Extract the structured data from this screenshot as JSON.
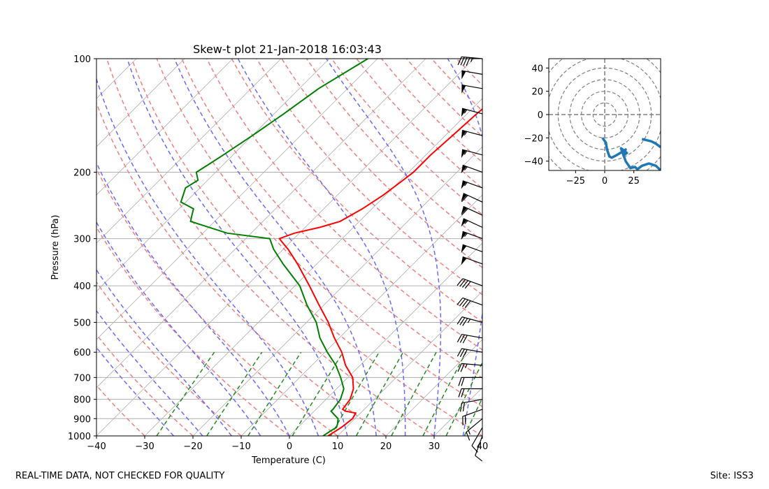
{
  "footer": {
    "quality_note": "REAL-TIME DATA, NOT CHECKED FOR QUALITY",
    "site": "Site: ISS3"
  },
  "colors": {
    "temperature": "#ff0000",
    "dewpoint": "#008000",
    "dry_adiabat": "#f08080",
    "moist_adiabat": "#6a6aff",
    "mixing_ratio": "#228b22",
    "isotherm": "#b0b0b0",
    "hodograph": "#1f77b4"
  },
  "chart_data": [
    {
      "type": "skew-t",
      "title": "Skew-t plot 21-Jan-2018 16:03:43",
      "xlabel": "Temperature (C)",
      "ylabel": "Pressure (hPa)",
      "xlim": [
        -40,
        40
      ],
      "ylim": [
        1000,
        100
      ],
      "x_ticks": [
        "−40",
        "−30",
        "−20",
        "−10",
        "0",
        "10",
        "20",
        "30",
        "40"
      ],
      "y_ticks": [
        "100",
        "200",
        "300",
        "400",
        "500",
        "600",
        "700",
        "800",
        "900",
        "1000"
      ],
      "temperature": [
        [
          1000,
          8
        ],
        [
          950,
          9
        ],
        [
          900,
          9.5
        ],
        [
          870,
          9
        ],
        [
          860,
          6.5
        ],
        [
          850,
          5.5
        ],
        [
          800,
          5
        ],
        [
          750,
          3.5
        ],
        [
          700,
          1
        ],
        [
          650,
          -3
        ],
        [
          600,
          -6.5
        ],
        [
          550,
          -11
        ],
        [
          500,
          -15.5
        ],
        [
          450,
          -21
        ],
        [
          400,
          -27
        ],
        [
          350,
          -34
        ],
        [
          320,
          -39
        ],
        [
          305,
          -42
        ],
        [
          300,
          -43
        ],
        [
          290,
          -41
        ],
        [
          280,
          -37
        ],
        [
          270,
          -34
        ],
        [
          250,
          -32
        ],
        [
          230,
          -30.5
        ],
        [
          210,
          -29.5
        ],
        [
          200,
          -29
        ],
        [
          180,
          -29
        ],
        [
          160,
          -28.5
        ],
        [
          140,
          -28
        ],
        [
          120,
          -27
        ],
        [
          110,
          -26.5
        ],
        [
          100,
          -26
        ]
      ],
      "dewpoint": [
        [
          1000,
          7
        ],
        [
          970,
          7.5
        ],
        [
          950,
          8
        ],
        [
          930,
          7.5
        ],
        [
          900,
          6.5
        ],
        [
          880,
          5
        ],
        [
          860,
          3.5
        ],
        [
          850,
          3.5
        ],
        [
          800,
          3
        ],
        [
          750,
          1.5
        ],
        [
          700,
          -1.5
        ],
        [
          650,
          -5
        ],
        [
          600,
          -9.5
        ],
        [
          550,
          -14
        ],
        [
          500,
          -18
        ],
        [
          450,
          -23.5
        ],
        [
          400,
          -29
        ],
        [
          350,
          -37
        ],
        [
          320,
          -42
        ],
        [
          300,
          -45
        ],
        [
          290,
          -55
        ],
        [
          270,
          -65
        ],
        [
          260,
          -66
        ],
        [
          250,
          -67
        ],
        [
          240,
          -71
        ],
        [
          220,
          -73
        ],
        [
          210,
          -72
        ],
        [
          200,
          -74
        ],
        [
          190,
          -73
        ],
        [
          180,
          -72
        ],
        [
          160,
          -70
        ],
        [
          140,
          -68
        ],
        [
          120,
          -66
        ],
        [
          100,
          -62
        ]
      ],
      "wind_barbs": [
        [
          1000,
          10,
          200
        ],
        [
          950,
          12,
          210
        ],
        [
          900,
          15,
          230
        ],
        [
          850,
          18,
          250
        ],
        [
          800,
          20,
          260
        ],
        [
          750,
          20,
          270
        ],
        [
          700,
          22,
          270
        ],
        [
          650,
          25,
          275
        ],
        [
          600,
          28,
          280
        ],
        [
          550,
          32,
          280
        ],
        [
          500,
          35,
          285
        ],
        [
          450,
          38,
          290
        ],
        [
          400,
          42,
          290
        ],
        [
          350,
          48,
          290
        ],
        [
          325,
          52,
          290
        ],
        [
          300,
          55,
          290
        ],
        [
          280,
          55,
          295
        ],
        [
          260,
          60,
          295
        ],
        [
          240,
          60,
          295
        ],
        [
          220,
          55,
          290
        ],
        [
          200,
          55,
          290
        ],
        [
          180,
          55,
          285
        ],
        [
          160,
          55,
          285
        ],
        [
          140,
          55,
          285
        ],
        [
          120,
          50,
          280
        ],
        [
          110,
          50,
          280
        ],
        [
          100,
          45,
          275
        ]
      ],
      "mixing_ratio_lines_gkg": [
        0.4,
        1,
        2,
        4,
        7,
        10,
        16,
        24,
        32,
        40
      ],
      "mixing_ratio_top_hPa": 600
    },
    {
      "type": "hodograph",
      "xlim": [
        -48,
        48
      ],
      "ylim": [
        -48,
        48
      ],
      "x_ticks": [
        "−25",
        "0",
        "25"
      ],
      "y_ticks": [
        "40",
        "20",
        "0",
        "−20",
        "−40"
      ],
      "ring_spacing": 10,
      "u": [
        -2,
        1,
        2,
        4,
        6,
        10,
        15,
        18,
        16,
        19,
        14,
        18,
        22,
        26,
        28,
        32,
        38,
        44,
        48
      ],
      "v": [
        -20,
        -24,
        -30,
        -36,
        -37,
        -35,
        -32,
        -30,
        -35,
        -33,
        -29,
        -40,
        -46,
        -45,
        -47,
        -44,
        -42,
        -44,
        -48
      ],
      "u2": [
        32,
        36,
        40,
        44,
        48
      ],
      "v2": [
        -21,
        -22,
        -23,
        -25,
        -28
      ]
    }
  ]
}
